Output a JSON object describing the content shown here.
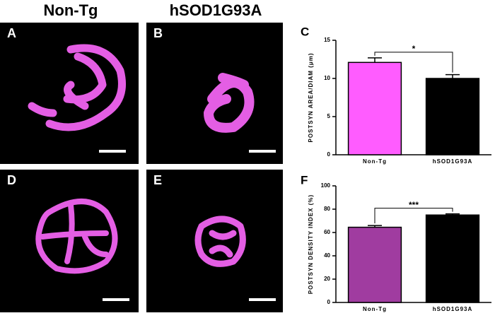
{
  "columns": [
    "Non-Tg",
    "hSOD1G93A"
  ],
  "panels": [
    "A",
    "B",
    "D",
    "E"
  ],
  "chart_data": [
    {
      "type": "bar",
      "label": "C",
      "ylabel": "POSTSYN AREA/DIAM (μm)",
      "categories": [
        "Non-Tg",
        "hSOD1G93A"
      ],
      "values": [
        12.1,
        10.0
      ],
      "errors": [
        0.6,
        0.5
      ],
      "colors": [
        "#ff5cff",
        "#c02ec0"
      ],
      "hatch": [
        false,
        true
      ],
      "significance": "*",
      "ylim": [
        0,
        15
      ],
      "yticks": [
        0,
        5,
        10,
        15
      ]
    },
    {
      "type": "bar",
      "label": "F",
      "ylabel": "POSTSYN DENSITY INDEX (%)",
      "categories": [
        "Non-Tg",
        "hSOD1G93A"
      ],
      "values": [
        64.5,
        75
      ],
      "errors": [
        1.5,
        1
      ],
      "colors": [
        "#a03ca0",
        "#d040c0"
      ],
      "hatch": [
        false,
        true
      ],
      "significance": "***",
      "ylim": [
        0,
        100
      ],
      "yticks": [
        0,
        20,
        40,
        60,
        80,
        100
      ]
    }
  ]
}
